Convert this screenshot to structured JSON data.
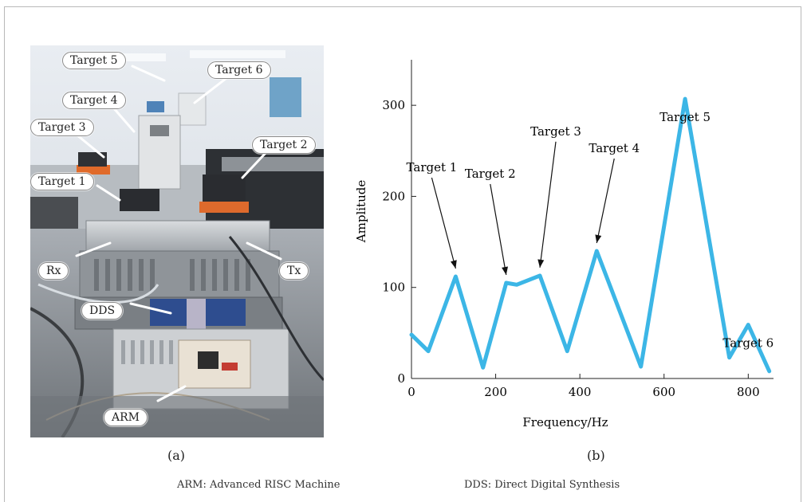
{
  "photo": {
    "callouts": [
      "Target 5",
      "Target 6",
      "Target 4",
      "Target 3",
      "Target 2",
      "Target 1",
      "Rx",
      "Tx",
      "DDS",
      "ARM"
    ]
  },
  "captions": {
    "a": "(a)",
    "b": "(b)"
  },
  "footnotes": {
    "arm": "ARM: Advanced RISC Machine",
    "dds": "DDS: Direct Digital Synthesis"
  },
  "chart_data": {
    "type": "line",
    "xlabel": "Frequency/Hz",
    "ylabel": "Amplitude",
    "xlim": [
      0,
      860
    ],
    "ylim": [
      0,
      350
    ],
    "xticks": [
      0,
      200,
      400,
      600,
      800
    ],
    "yticks": [
      0,
      100,
      200,
      300
    ],
    "grid": false,
    "color": "#3cb6e6",
    "series": [
      {
        "x": [
          0,
          40,
          105,
          170,
          225,
          250,
          305,
          370,
          440,
          545,
          650,
          755,
          800,
          850
        ],
        "y": [
          48,
          30,
          112,
          12,
          105,
          103,
          113,
          30,
          140,
          13,
          307,
          23,
          59,
          8
        ]
      }
    ],
    "annotations": [
      {
        "text": "Target 1",
        "x": 105,
        "y": 112
      },
      {
        "text": "Target 2",
        "x": 225,
        "y": 105
      },
      {
        "text": "Target 3",
        "x": 305,
        "y": 113
      },
      {
        "text": "Target 4",
        "x": 440,
        "y": 140
      },
      {
        "text": "Target 5",
        "x": 650,
        "y": 307
      },
      {
        "text": "Target 6",
        "x": 800,
        "y": 59
      }
    ]
  }
}
